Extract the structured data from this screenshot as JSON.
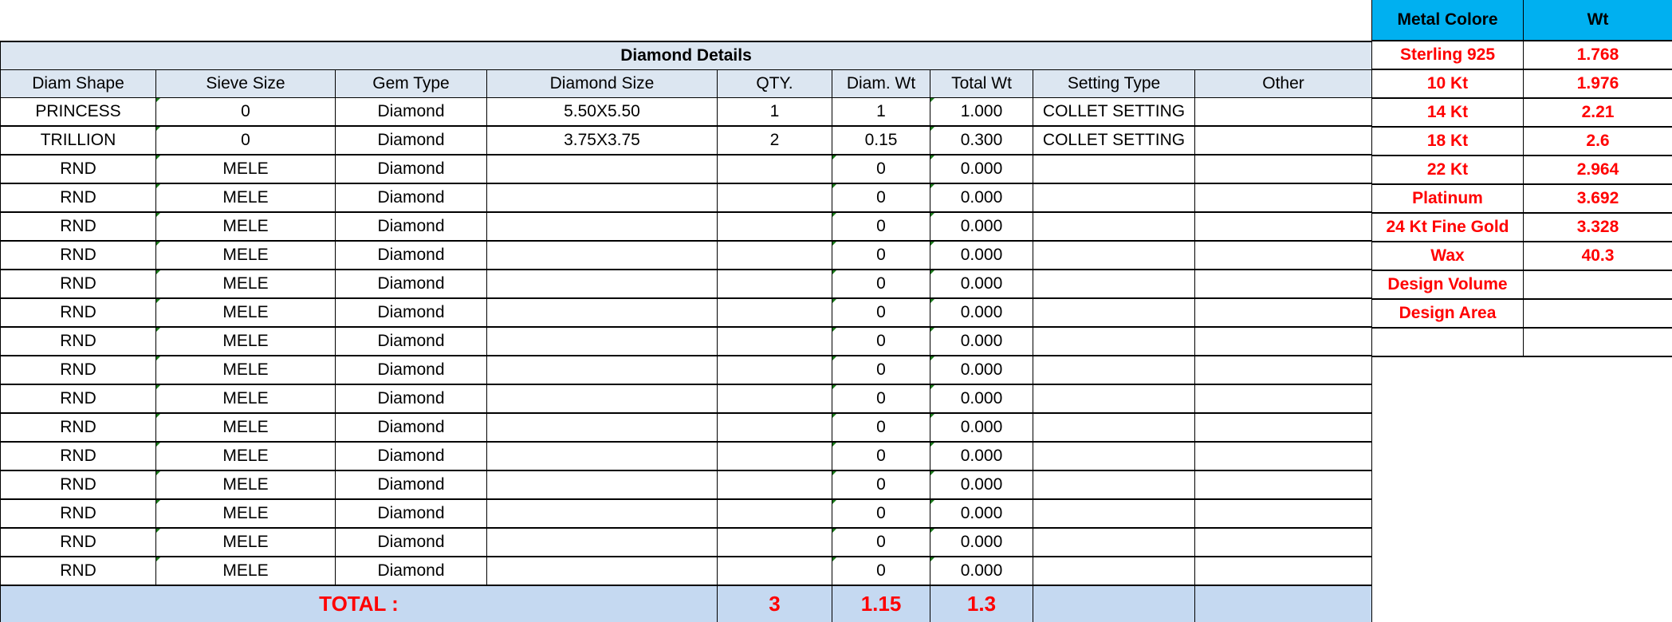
{
  "diamond_table": {
    "title": "Diamond Details",
    "columns": [
      "Diam Shape",
      "Sieve Size",
      "Gem Type",
      "Diamond Size",
      "QTY.",
      "Diam. Wt",
      "Total Wt",
      "Setting Type",
      "Other"
    ],
    "rows": [
      [
        "PRINCESS",
        "0",
        "Diamond",
        "5.50X5.50",
        "1",
        "1",
        "1.000",
        "COLLET SETTING",
        ""
      ],
      [
        "TRILLION",
        "0",
        "Diamond",
        "3.75X3.75",
        "2",
        "0.15",
        "0.300",
        "COLLET SETTING",
        ""
      ],
      [
        "RND",
        "MELE",
        "Diamond",
        "",
        "",
        "0",
        "0.000",
        "",
        ""
      ],
      [
        "RND",
        "MELE",
        "Diamond",
        "",
        "",
        "0",
        "0.000",
        "",
        ""
      ],
      [
        "RND",
        "MELE",
        "Diamond",
        "",
        "",
        "0",
        "0.000",
        "",
        ""
      ],
      [
        "RND",
        "MELE",
        "Diamond",
        "",
        "",
        "0",
        "0.000",
        "",
        ""
      ],
      [
        "RND",
        "MELE",
        "Diamond",
        "",
        "",
        "0",
        "0.000",
        "",
        ""
      ],
      [
        "RND",
        "MELE",
        "Diamond",
        "",
        "",
        "0",
        "0.000",
        "",
        ""
      ],
      [
        "RND",
        "MELE",
        "Diamond",
        "",
        "",
        "0",
        "0.000",
        "",
        ""
      ],
      [
        "RND",
        "MELE",
        "Diamond",
        "",
        "",
        "0",
        "0.000",
        "",
        ""
      ],
      [
        "RND",
        "MELE",
        "Diamond",
        "",
        "",
        "0",
        "0.000",
        "",
        ""
      ],
      [
        "RND",
        "MELE",
        "Diamond",
        "",
        "",
        "0",
        "0.000",
        "",
        ""
      ],
      [
        "RND",
        "MELE",
        "Diamond",
        "",
        "",
        "0",
        "0.000",
        "",
        ""
      ],
      [
        "RND",
        "MELE",
        "Diamond",
        "",
        "",
        "0",
        "0.000",
        "",
        ""
      ],
      [
        "RND",
        "MELE",
        "Diamond",
        "",
        "",
        "0",
        "0.000",
        "",
        ""
      ],
      [
        "RND",
        "MELE",
        "Diamond",
        "",
        "",
        "0",
        "0.000",
        "",
        ""
      ],
      [
        "RND",
        "MELE",
        "Diamond",
        "",
        "",
        "0",
        "0.000",
        "",
        ""
      ]
    ],
    "total": {
      "label": "TOTAL :",
      "qty": "3",
      "diam_wt": "1.15",
      "total_wt": "1.3"
    }
  },
  "metal_table": {
    "columns": [
      "Metal Colore",
      "Wt"
    ],
    "rows": [
      [
        "Sterling 925",
        "1.768"
      ],
      [
        "10 Kt",
        "1.976"
      ],
      [
        "14 Kt",
        "2.21"
      ],
      [
        "18 Kt",
        "2.6"
      ],
      [
        "22 Kt",
        "2.964"
      ],
      [
        "Platinum",
        "3.692"
      ],
      [
        "24 Kt Fine Gold",
        "3.328"
      ],
      [
        "Wax",
        "40.3"
      ],
      [
        "Design Volume",
        ""
      ],
      [
        "Design Area",
        ""
      ],
      [
        "",
        ""
      ]
    ]
  },
  "colors": {
    "header_fill": "#dce6f1",
    "total_fill": "#c5d9f1",
    "metal_header_fill": "#00b0f0",
    "accent_text": "#ff0000"
  }
}
